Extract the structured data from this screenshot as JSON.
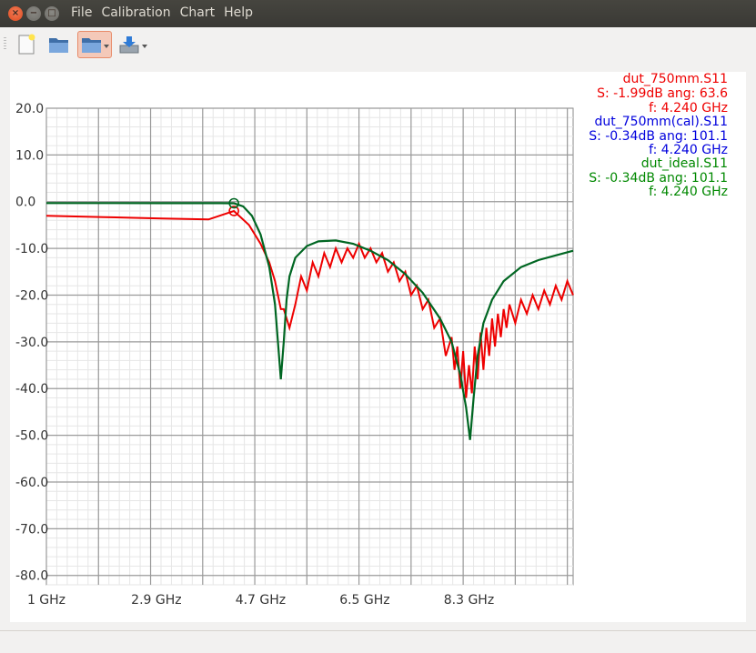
{
  "window": {
    "close_glyph": "×",
    "minimize_glyph": "−",
    "maximize_glyph": "□"
  },
  "menu": [
    "File",
    "Calibration",
    "Chart",
    "Help"
  ],
  "toolbar": {
    "icons": [
      "new-file-icon",
      "open-folder-icon",
      "open-folder-dropdown-icon",
      "export-dropdown-icon"
    ]
  },
  "legend": [
    {
      "name": "dut_750mm.S11",
      "readout": "S: -1.99dB ang: 63.6",
      "freq": "f: 4.240 GHz",
      "color": "#ee0000"
    },
    {
      "name": "dut_750mm(cal).S11",
      "readout": "S: -0.34dB ang: 101.1",
      "freq": "f: 4.240 GHz",
      "color": "#0000dd"
    },
    {
      "name": "dut_ideal.S11",
      "readout": "S: -0.34dB ang: 101.1",
      "freq": "f: 4.240 GHz",
      "color": "#008800"
    }
  ],
  "chart_data": {
    "type": "line",
    "x_unit": "GHz",
    "xlim": [
      1.0,
      10.1
    ],
    "ylim": [
      -82,
      20
    ],
    "y_ticks": [
      "20.0",
      "10.0",
      "0.0",
      "-10.0",
      "-20.0",
      "-30.0",
      "-40.0",
      "-50.0",
      "-60.0",
      "-70.0",
      "-80.0"
    ],
    "y_tick_values": [
      20,
      10,
      0,
      -10,
      -20,
      -30,
      -40,
      -50,
      -60,
      -70,
      -80
    ],
    "x_ticks": [
      "1 GHz",
      "2.9 GHz",
      "4.7 GHz",
      "6.5 GHz",
      "8.3 GHz"
    ],
    "x_tick_values": [
      1.0,
      2.9,
      4.7,
      6.5,
      8.3
    ],
    "grid": true,
    "marker": {
      "x": 4.24,
      "y_values": [
        -1.99,
        -0.34
      ]
    },
    "series": [
      {
        "name": "dut_750mm.S11",
        "color": "#ee0000",
        "x": [
          1.0,
          2.0,
          3.0,
          3.8,
          4.24,
          4.5,
          4.7,
          4.85,
          4.95,
          5.05,
          5.1,
          5.2,
          5.3,
          5.4,
          5.5,
          5.6,
          5.7,
          5.8,
          5.9,
          6.0,
          6.1,
          6.2,
          6.3,
          6.4,
          6.5,
          6.6,
          6.7,
          6.8,
          6.9,
          7.0,
          7.1,
          7.2,
          7.3,
          7.4,
          7.5,
          7.6,
          7.7,
          7.8,
          7.9,
          8.0,
          8.05,
          8.1,
          8.15,
          8.2,
          8.25,
          8.3,
          8.35,
          8.4,
          8.45,
          8.5,
          8.55,
          8.6,
          8.65,
          8.7,
          8.75,
          8.8,
          8.85,
          8.9,
          8.95,
          9.0,
          9.1,
          9.2,
          9.3,
          9.4,
          9.5,
          9.6,
          9.7,
          9.8,
          9.9,
          10.0,
          10.1
        ],
        "y": [
          -3,
          -3.3,
          -3.6,
          -3.8,
          -1.99,
          -5,
          -9,
          -13,
          -17,
          -23,
          -23,
          -27,
          -22,
          -16,
          -19,
          -13,
          -16,
          -11,
          -14,
          -10,
          -13,
          -10,
          -12,
          -9,
          -12,
          -10,
          -13,
          -11,
          -15,
          -13,
          -17,
          -15,
          -20,
          -18,
          -23,
          -21,
          -27,
          -25,
          -33,
          -29,
          -36,
          -31,
          -40,
          -32,
          -42,
          -35,
          -41,
          -31,
          -38,
          -28,
          -36,
          -27,
          -33,
          -25,
          -31,
          -24,
          -29,
          -23,
          -27,
          -22,
          -26,
          -21,
          -24,
          -20,
          -23,
          -19,
          -22,
          -18,
          -21,
          -17,
          -20
        ]
      },
      {
        "name": "dut_ideal.S11",
        "color": "#006622",
        "x": [
          1.0,
          2.0,
          3.0,
          4.0,
          4.24,
          4.4,
          4.55,
          4.7,
          4.85,
          4.95,
          5.0,
          5.05,
          5.1,
          5.15,
          5.2,
          5.3,
          5.5,
          5.7,
          6.0,
          6.3,
          6.6,
          6.9,
          7.2,
          7.5,
          7.8,
          8.0,
          8.15,
          8.25,
          8.32,
          8.38,
          8.45,
          8.55,
          8.7,
          8.9,
          9.2,
          9.5,
          9.8,
          10.1
        ],
        "y": [
          -0.3,
          -0.3,
          -0.32,
          -0.33,
          -0.34,
          -1,
          -3,
          -7,
          -14,
          -22,
          -30,
          -38,
          -30,
          -21,
          -16,
          -12,
          -9.5,
          -8.5,
          -8.3,
          -9,
          -10.5,
          -12.5,
          -15.5,
          -19.5,
          -25,
          -30,
          -37,
          -44,
          -51,
          -42,
          -33,
          -26,
          -21,
          -17,
          -14,
          -12.5,
          -11.5,
          -10.5
        ]
      }
    ]
  }
}
